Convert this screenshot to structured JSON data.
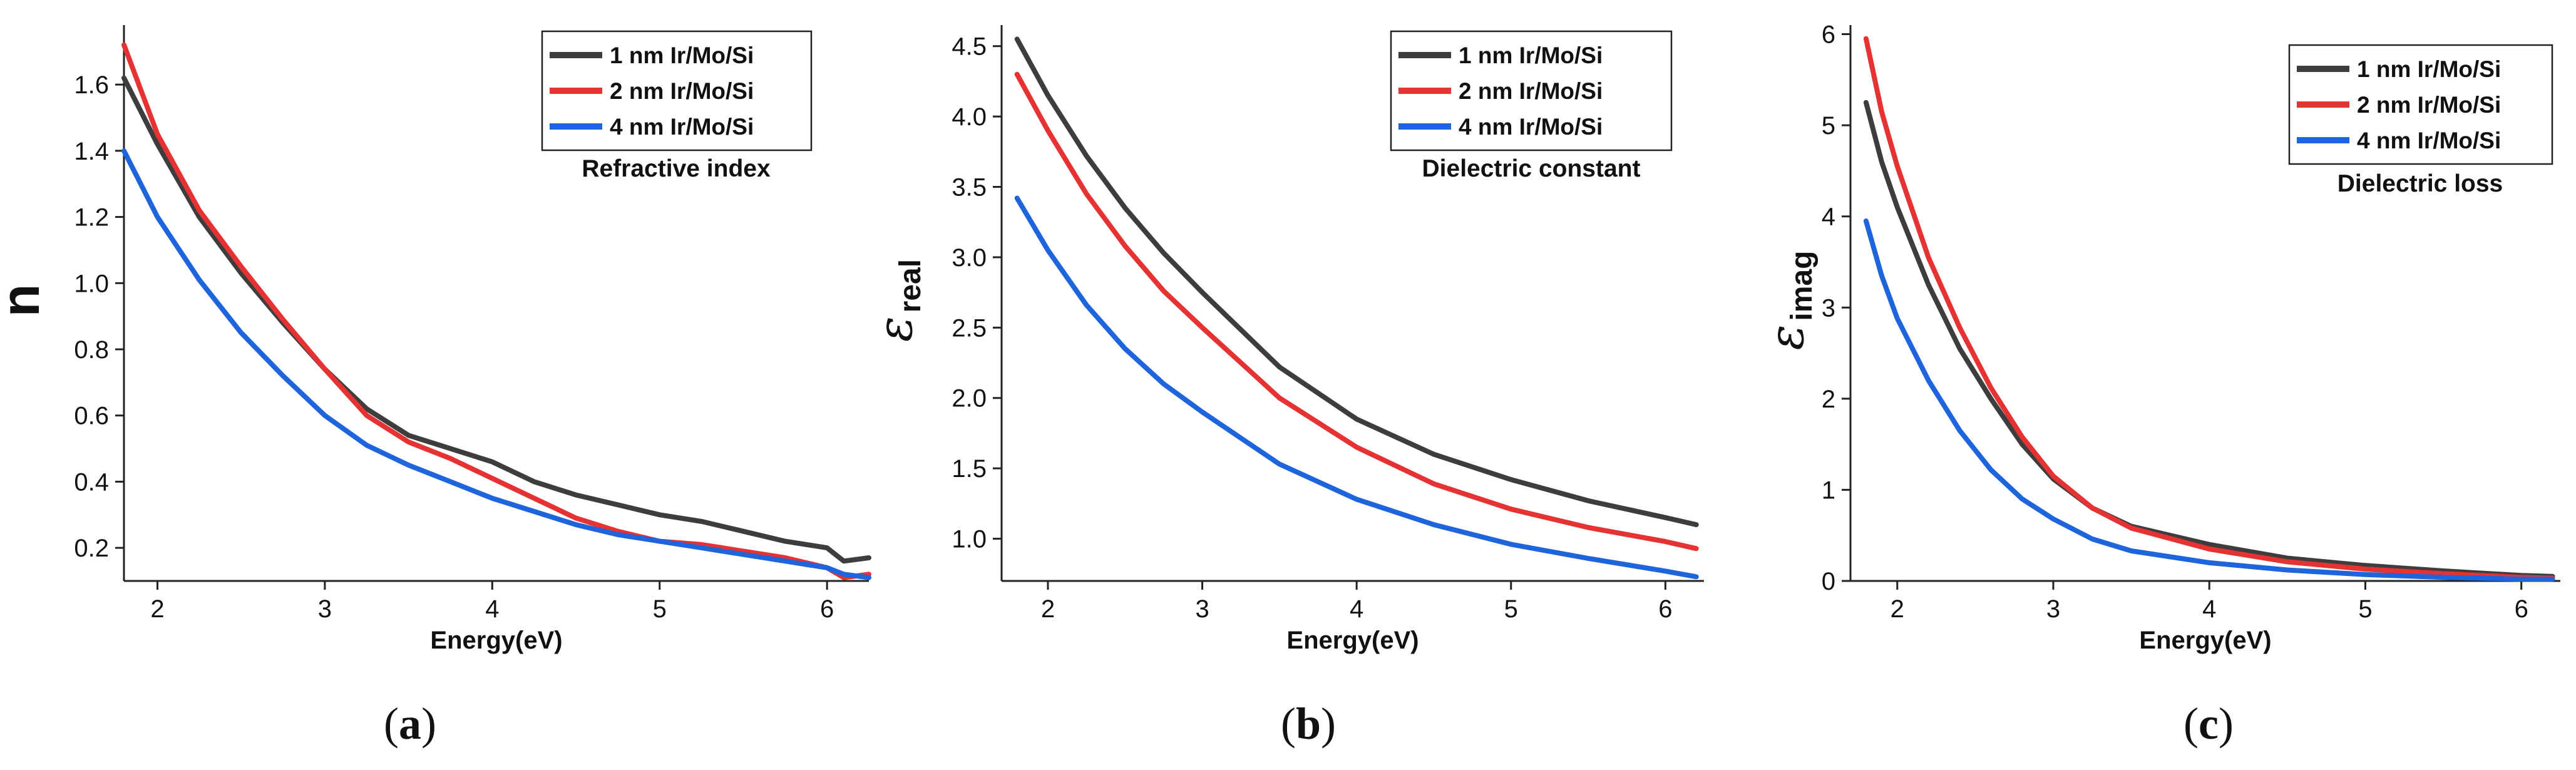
{
  "figure": {
    "panel_count": 3
  },
  "chart_data": [
    {
      "type": "line",
      "panel": "a",
      "title": "",
      "caption_open": "(",
      "caption_letter": "a",
      "caption_close": ")",
      "xlabel": "Energy(eV)",
      "ylabel": "n",
      "ylabel_sub": "",
      "annotation": "Refractive index",
      "legend_position": "top-right",
      "xlim": [
        1.8,
        6.25
      ],
      "ylim": [
        0.1,
        1.78
      ],
      "xticks": [
        2,
        3,
        4,
        5,
        6
      ],
      "yticks": [
        0.2,
        0.4,
        0.6,
        0.8,
        1.0,
        1.2,
        1.4,
        1.6
      ],
      "ytick_labels": [
        "0.2",
        "0.4",
        "0.6",
        "0.8",
        "1.0",
        "1.2",
        "1.4",
        "1.6"
      ],
      "grid": false,
      "x": [
        1.8,
        2.0,
        2.25,
        2.5,
        2.75,
        3.0,
        3.25,
        3.5,
        3.75,
        4.0,
        4.25,
        4.5,
        4.75,
        5.0,
        5.25,
        5.5,
        5.75,
        6.0,
        6.1,
        6.25
      ],
      "series": [
        {
          "name": "1 nm Ir/Mo/Si",
          "color": "#3d3d3d",
          "values": [
            1.62,
            1.42,
            1.2,
            1.03,
            0.88,
            0.74,
            0.62,
            0.54,
            0.5,
            0.46,
            0.4,
            0.36,
            0.33,
            0.3,
            0.28,
            0.25,
            0.22,
            0.2,
            0.16,
            0.17
          ]
        },
        {
          "name": "2 nm Ir/Mo/Si",
          "color": "#e63232",
          "values": [
            1.72,
            1.45,
            1.22,
            1.05,
            0.89,
            0.74,
            0.6,
            0.52,
            0.47,
            0.41,
            0.35,
            0.29,
            0.25,
            0.22,
            0.21,
            0.19,
            0.17,
            0.14,
            0.11,
            0.12
          ]
        },
        {
          "name": "4 nm Ir/Mo/Si",
          "color": "#1e64dc",
          "values": [
            1.4,
            1.2,
            1.01,
            0.85,
            0.72,
            0.6,
            0.51,
            0.45,
            0.4,
            0.35,
            0.31,
            0.27,
            0.24,
            0.22,
            0.2,
            0.18,
            0.16,
            0.14,
            0.12,
            0.11
          ]
        }
      ]
    },
    {
      "type": "line",
      "panel": "b",
      "title": "",
      "caption_open": "(",
      "caption_letter": "b",
      "caption_close": ")",
      "xlabel": "Energy(eV)",
      "ylabel": "ε",
      "ylabel_sub": "real",
      "annotation": "Dielectric constant",
      "legend_position": "top-right",
      "xlim": [
        1.7,
        6.25
      ],
      "ylim": [
        0.7,
        4.65
      ],
      "xticks": [
        2,
        3,
        4,
        5,
        6
      ],
      "yticks": [
        1.0,
        1.5,
        2.0,
        2.5,
        3.0,
        3.5,
        4.0,
        4.5
      ],
      "ytick_labels": [
        "1.0",
        "1.5",
        "2.0",
        "2.5",
        "3.0",
        "3.5",
        "4.0",
        "4.5"
      ],
      "grid": false,
      "x": [
        1.8,
        2.0,
        2.25,
        2.5,
        2.75,
        3.0,
        3.5,
        4.0,
        4.5,
        5.0,
        5.5,
        6.0,
        6.2
      ],
      "series": [
        {
          "name": "1 nm Ir/Mo/Si",
          "color": "#3d3d3d",
          "values": [
            4.55,
            4.15,
            3.72,
            3.35,
            3.03,
            2.75,
            2.22,
            1.85,
            1.6,
            1.42,
            1.27,
            1.15,
            1.1
          ]
        },
        {
          "name": "2 nm Ir/Mo/Si",
          "color": "#e63232",
          "values": [
            4.3,
            3.9,
            3.45,
            3.08,
            2.76,
            2.5,
            2.0,
            1.65,
            1.39,
            1.21,
            1.08,
            0.98,
            0.93
          ]
        },
        {
          "name": "4 nm Ir/Mo/Si",
          "color": "#1e64dc",
          "values": [
            3.42,
            3.05,
            2.66,
            2.35,
            2.1,
            1.9,
            1.53,
            1.28,
            1.1,
            0.96,
            0.86,
            0.77,
            0.73
          ]
        }
      ]
    },
    {
      "type": "line",
      "panel": "c",
      "title": "",
      "caption_open": "(",
      "caption_letter": "c",
      "caption_close": ")",
      "xlabel": "Energy(eV)",
      "ylabel": "ε",
      "ylabel_sub": "imag",
      "annotation": "Dielectric loss",
      "legend_position": "top-right",
      "xlim": [
        1.7,
        6.25
      ],
      "ylim": [
        0.0,
        6.1
      ],
      "xticks": [
        2,
        3,
        4,
        5,
        6
      ],
      "yticks": [
        0,
        1,
        2,
        3,
        4,
        5,
        6
      ],
      "ytick_labels": [
        "0",
        "1",
        "2",
        "3",
        "4",
        "5",
        "6"
      ],
      "grid": false,
      "x": [
        1.8,
        1.9,
        2.0,
        2.2,
        2.4,
        2.6,
        2.8,
        3.0,
        3.25,
        3.5,
        4.0,
        4.5,
        5.0,
        5.5,
        6.0,
        6.2
      ],
      "series": [
        {
          "name": "1 nm Ir/Mo/Si",
          "color": "#3d3d3d",
          "values": [
            5.25,
            4.6,
            4.1,
            3.25,
            2.55,
            2.0,
            1.5,
            1.12,
            0.8,
            0.6,
            0.4,
            0.25,
            0.17,
            0.11,
            0.06,
            0.05
          ]
        },
        {
          "name": "2 nm Ir/Mo/Si",
          "color": "#e63232",
          "values": [
            5.95,
            5.15,
            4.55,
            3.55,
            2.78,
            2.12,
            1.58,
            1.15,
            0.8,
            0.58,
            0.35,
            0.21,
            0.13,
            0.08,
            0.04,
            0.03
          ]
        },
        {
          "name": "4 nm Ir/Mo/Si",
          "color": "#1e64dc",
          "values": [
            3.95,
            3.35,
            2.88,
            2.2,
            1.65,
            1.22,
            0.9,
            0.68,
            0.46,
            0.33,
            0.2,
            0.12,
            0.07,
            0.04,
            0.02,
            0.02
          ]
        }
      ]
    }
  ]
}
